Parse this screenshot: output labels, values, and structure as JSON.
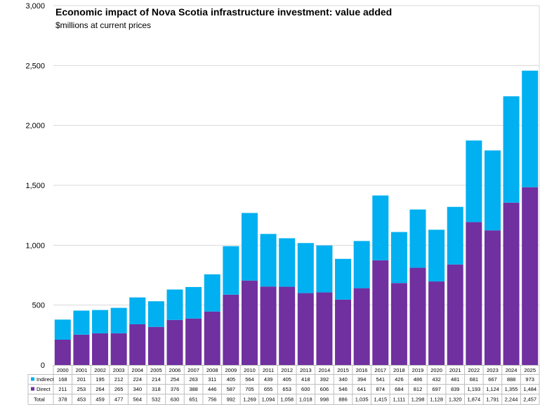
{
  "chart_data": {
    "type": "bar",
    "stacked": true,
    "title": "Economic impact of Nova Scotia infrastructure investment: value added",
    "subtitle": "$millions at current prices",
    "xlabel": "",
    "ylabel": "",
    "ylim": [
      0,
      3000
    ],
    "yticks": [
      0,
      500,
      1000,
      1500,
      2000,
      2500,
      3000
    ],
    "ytick_labels": [
      "0",
      "500",
      "1,000",
      "1,500",
      "2,000",
      "2,500",
      "3,000"
    ],
    "grid": true,
    "categories": [
      "2000",
      "2001",
      "2002",
      "2003",
      "2004",
      "2005",
      "2006",
      "2007",
      "2008",
      "2009",
      "2010",
      "2011",
      "2012",
      "2013",
      "2014",
      "2015",
      "2016",
      "2017",
      "2018",
      "2019",
      "2020",
      "2021",
      "2022",
      "2023",
      "2024",
      "2025"
    ],
    "series": [
      {
        "name": "Direct",
        "color": "#7030a0",
        "values": [
          211,
          253,
          264,
          265,
          340,
          318,
          376,
          388,
          446,
          587,
          705,
          655,
          653,
          600,
          606,
          546,
          641,
          874,
          684,
          812,
          697,
          839,
          1193,
          1124,
          1355,
          1484
        ],
        "labels": [
          "211",
          "253",
          "264",
          "265",
          "340",
          "318",
          "376",
          "388",
          "446",
          "587",
          "705",
          "655",
          "653",
          "600",
          "606",
          "546",
          "641",
          "874",
          "684",
          "812",
          "697",
          "839",
          "1,193",
          "1,124",
          "1,355",
          "1,484"
        ]
      },
      {
        "name": "Indirect",
        "color": "#00b0f0",
        "values": [
          168,
          201,
          195,
          212,
          224,
          214,
          254,
          263,
          311,
          405,
          564,
          439,
          405,
          418,
          392,
          340,
          394,
          541,
          426,
          486,
          432,
          481,
          681,
          667,
          888,
          973
        ],
        "labels": [
          "168",
          "201",
          "195",
          "212",
          "224",
          "214",
          "254",
          "263",
          "311",
          "405",
          "564",
          "439",
          "405",
          "418",
          "392",
          "340",
          "394",
          "541",
          "426",
          "486",
          "432",
          "481",
          "681",
          "667",
          "888",
          "973"
        ]
      }
    ],
    "totals": {
      "name": "Total",
      "values": [
        378,
        453,
        459,
        477,
        564,
        532,
        630,
        651,
        756,
        992,
        1269,
        1094,
        1058,
        1018,
        998,
        886,
        1035,
        1415,
        1111,
        1298,
        1128,
        1320,
        1874,
        1791,
        2244,
        2457
      ],
      "labels": [
        "378",
        "453",
        "459",
        "477",
        "564",
        "532",
        "630",
        "651",
        "756",
        "992",
        "1,269",
        "1,094",
        "1,058",
        "1,018",
        "998",
        "886",
        "1,035",
        "1,415",
        "1,111",
        "1,298",
        "1,128",
        "1,320",
        "1,874",
        "1,791",
        "2,244",
        "2,457"
      ]
    },
    "table_row_order": [
      "Indirect",
      "Direct",
      "Total"
    ]
  }
}
